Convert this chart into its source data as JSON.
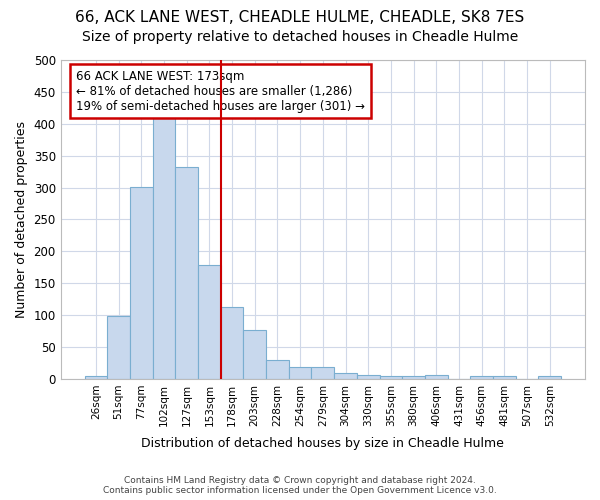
{
  "title1": "66, ACK LANE WEST, CHEADLE HULME, CHEADLE, SK8 7ES",
  "title2": "Size of property relative to detached houses in Cheadle Hulme",
  "xlabel": "Distribution of detached houses by size in Cheadle Hulme",
  "ylabel": "Number of detached properties",
  "bar_labels": [
    "26sqm",
    "51sqm",
    "77sqm",
    "102sqm",
    "127sqm",
    "153sqm",
    "178sqm",
    "203sqm",
    "228sqm",
    "254sqm",
    "279sqm",
    "304sqm",
    "330sqm",
    "355sqm",
    "380sqm",
    "406sqm",
    "431sqm",
    "456sqm",
    "481sqm",
    "507sqm",
    "532sqm"
  ],
  "bar_values": [
    5,
    99,
    301,
    411,
    333,
    178,
    112,
    76,
    30,
    18,
    18,
    10,
    6,
    4,
    4,
    6,
    0,
    5,
    5,
    0,
    4
  ],
  "bar_color": "#c8d8ed",
  "bar_edge_color": "#7aaed0",
  "vline_x_index": 6,
  "vline_color": "#cc0000",
  "annotation_text": "66 ACK LANE WEST: 173sqm\n← 81% of detached houses are smaller (1,286)\n19% of semi-detached houses are larger (301) →",
  "annotation_box_color": "#ffffff",
  "annotation_box_edge": "#cc0000",
  "ylim": [
    0,
    500
  ],
  "yticks": [
    0,
    50,
    100,
    150,
    200,
    250,
    300,
    350,
    400,
    450,
    500
  ],
  "footer1": "Contains HM Land Registry data © Crown copyright and database right 2024.",
  "footer2": "Contains public sector information licensed under the Open Government Licence v3.0.",
  "bg_color": "#ffffff",
  "grid_color": "#d0d8e8",
  "title1_fontsize": 11,
  "title2_fontsize": 10
}
